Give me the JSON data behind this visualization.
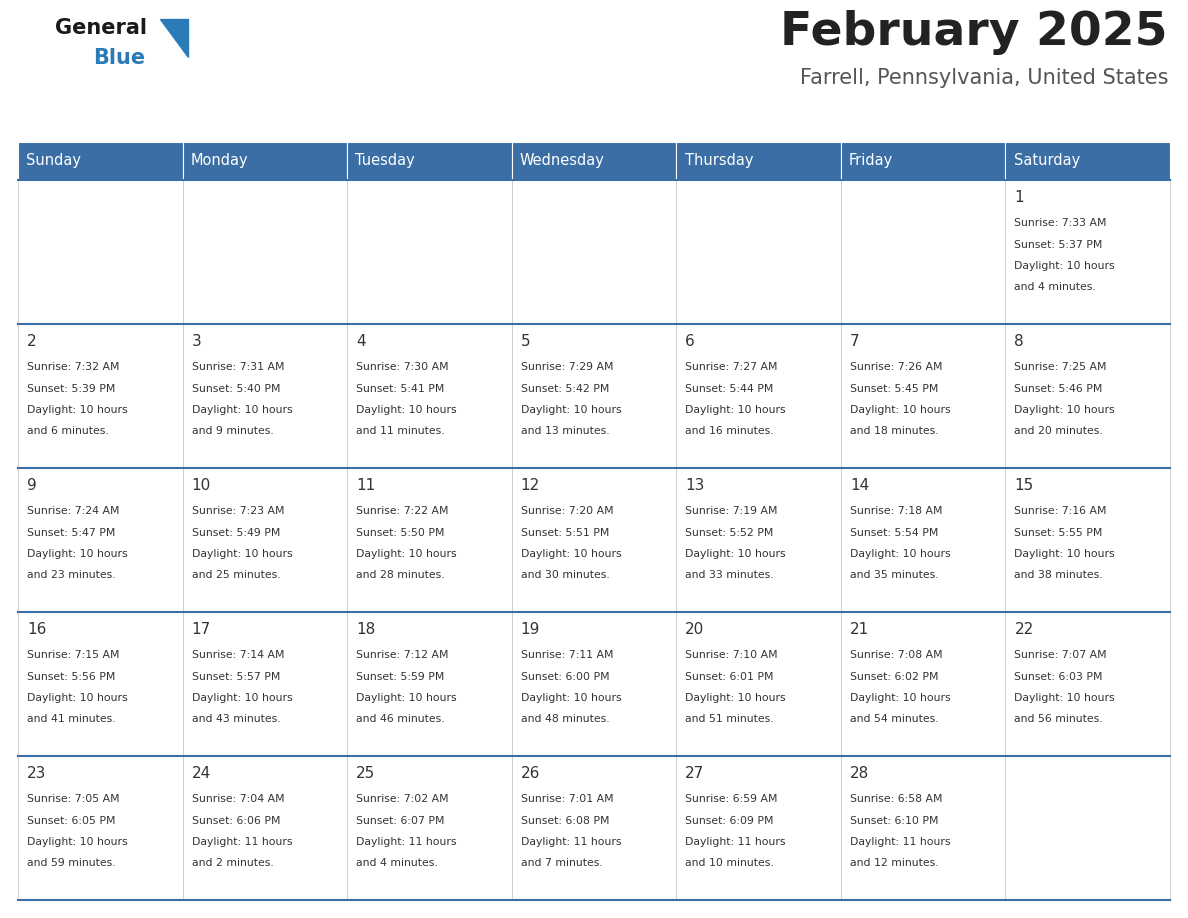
{
  "title": "February 2025",
  "subtitle": "Farrell, Pennsylvania, United States",
  "days_of_week": [
    "Sunday",
    "Monday",
    "Tuesday",
    "Wednesday",
    "Thursday",
    "Friday",
    "Saturday"
  ],
  "header_bg": "#3A6EA5",
  "header_text_color": "#FFFFFF",
  "cell_bg": "#FFFFFF",
  "separator_color": "#3A6EA5",
  "text_color": "#333333",
  "title_color": "#222222",
  "subtitle_color": "#555555",
  "logo_general_color": "#1a1a1a",
  "logo_blue_color": "#2B7BB9",
  "weeks": [
    [
      {
        "day": null,
        "info": null
      },
      {
        "day": null,
        "info": null
      },
      {
        "day": null,
        "info": null
      },
      {
        "day": null,
        "info": null
      },
      {
        "day": null,
        "info": null
      },
      {
        "day": null,
        "info": null
      },
      {
        "day": 1,
        "info": "Sunrise: 7:33 AM\nSunset: 5:37 PM\nDaylight: 10 hours\nand 4 minutes."
      }
    ],
    [
      {
        "day": 2,
        "info": "Sunrise: 7:32 AM\nSunset: 5:39 PM\nDaylight: 10 hours\nand 6 minutes."
      },
      {
        "day": 3,
        "info": "Sunrise: 7:31 AM\nSunset: 5:40 PM\nDaylight: 10 hours\nand 9 minutes."
      },
      {
        "day": 4,
        "info": "Sunrise: 7:30 AM\nSunset: 5:41 PM\nDaylight: 10 hours\nand 11 minutes."
      },
      {
        "day": 5,
        "info": "Sunrise: 7:29 AM\nSunset: 5:42 PM\nDaylight: 10 hours\nand 13 minutes."
      },
      {
        "day": 6,
        "info": "Sunrise: 7:27 AM\nSunset: 5:44 PM\nDaylight: 10 hours\nand 16 minutes."
      },
      {
        "day": 7,
        "info": "Sunrise: 7:26 AM\nSunset: 5:45 PM\nDaylight: 10 hours\nand 18 minutes."
      },
      {
        "day": 8,
        "info": "Sunrise: 7:25 AM\nSunset: 5:46 PM\nDaylight: 10 hours\nand 20 minutes."
      }
    ],
    [
      {
        "day": 9,
        "info": "Sunrise: 7:24 AM\nSunset: 5:47 PM\nDaylight: 10 hours\nand 23 minutes."
      },
      {
        "day": 10,
        "info": "Sunrise: 7:23 AM\nSunset: 5:49 PM\nDaylight: 10 hours\nand 25 minutes."
      },
      {
        "day": 11,
        "info": "Sunrise: 7:22 AM\nSunset: 5:50 PM\nDaylight: 10 hours\nand 28 minutes."
      },
      {
        "day": 12,
        "info": "Sunrise: 7:20 AM\nSunset: 5:51 PM\nDaylight: 10 hours\nand 30 minutes."
      },
      {
        "day": 13,
        "info": "Sunrise: 7:19 AM\nSunset: 5:52 PM\nDaylight: 10 hours\nand 33 minutes."
      },
      {
        "day": 14,
        "info": "Sunrise: 7:18 AM\nSunset: 5:54 PM\nDaylight: 10 hours\nand 35 minutes."
      },
      {
        "day": 15,
        "info": "Sunrise: 7:16 AM\nSunset: 5:55 PM\nDaylight: 10 hours\nand 38 minutes."
      }
    ],
    [
      {
        "day": 16,
        "info": "Sunrise: 7:15 AM\nSunset: 5:56 PM\nDaylight: 10 hours\nand 41 minutes."
      },
      {
        "day": 17,
        "info": "Sunrise: 7:14 AM\nSunset: 5:57 PM\nDaylight: 10 hours\nand 43 minutes."
      },
      {
        "day": 18,
        "info": "Sunrise: 7:12 AM\nSunset: 5:59 PM\nDaylight: 10 hours\nand 46 minutes."
      },
      {
        "day": 19,
        "info": "Sunrise: 7:11 AM\nSunset: 6:00 PM\nDaylight: 10 hours\nand 48 minutes."
      },
      {
        "day": 20,
        "info": "Sunrise: 7:10 AM\nSunset: 6:01 PM\nDaylight: 10 hours\nand 51 minutes."
      },
      {
        "day": 21,
        "info": "Sunrise: 7:08 AM\nSunset: 6:02 PM\nDaylight: 10 hours\nand 54 minutes."
      },
      {
        "day": 22,
        "info": "Sunrise: 7:07 AM\nSunset: 6:03 PM\nDaylight: 10 hours\nand 56 minutes."
      }
    ],
    [
      {
        "day": 23,
        "info": "Sunrise: 7:05 AM\nSunset: 6:05 PM\nDaylight: 10 hours\nand 59 minutes."
      },
      {
        "day": 24,
        "info": "Sunrise: 7:04 AM\nSunset: 6:06 PM\nDaylight: 11 hours\nand 2 minutes."
      },
      {
        "day": 25,
        "info": "Sunrise: 7:02 AM\nSunset: 6:07 PM\nDaylight: 11 hours\nand 4 minutes."
      },
      {
        "day": 26,
        "info": "Sunrise: 7:01 AM\nSunset: 6:08 PM\nDaylight: 11 hours\nand 7 minutes."
      },
      {
        "day": 27,
        "info": "Sunrise: 6:59 AM\nSunset: 6:09 PM\nDaylight: 11 hours\nand 10 minutes."
      },
      {
        "day": 28,
        "info": "Sunrise: 6:58 AM\nSunset: 6:10 PM\nDaylight: 11 hours\nand 12 minutes."
      },
      {
        "day": null,
        "info": null
      }
    ]
  ],
  "fig_width": 11.88,
  "fig_height": 9.18,
  "dpi": 100
}
